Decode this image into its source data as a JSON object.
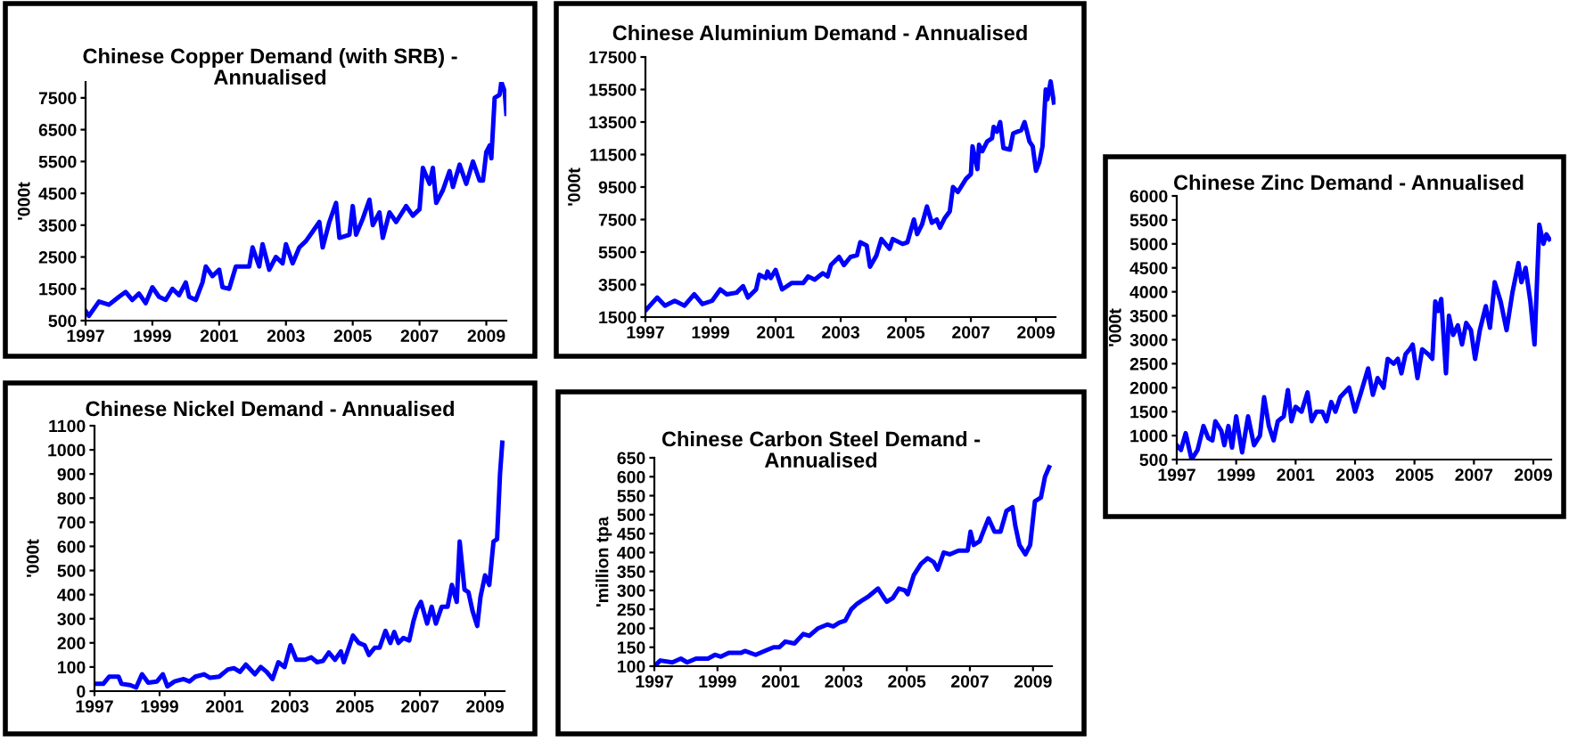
{
  "chart_data": [
    {
      "type": "line",
      "title": "Chinese Copper Demand (with SRB) -\nAnnualised",
      "ylabel": "'000t",
      "color": "#0000ff",
      "xlim": [
        1997,
        2009.6
      ],
      "xticks": [
        1997,
        1999,
        2001,
        2003,
        2005,
        2007,
        2009
      ],
      "ylim": [
        500,
        8000
      ],
      "yticks": [
        500,
        1500,
        2500,
        3500,
        4500,
        5500,
        6500,
        7500
      ],
      "x": [
        1997.0,
        1997.1,
        1997.4,
        1997.7,
        1998.0,
        1998.2,
        1998.4,
        1998.6,
        1998.8,
        1999.0,
        1999.2,
        1999.4,
        1999.6,
        1999.8,
        2000.0,
        2000.1,
        2000.3,
        2000.5,
        2000.6,
        2000.8,
        2001.0,
        2001.1,
        2001.3,
        2001.5,
        2001.7,
        2001.9,
        2002.0,
        2002.2,
        2002.3,
        2002.5,
        2002.7,
        2002.9,
        2003.0,
        2003.2,
        2003.4,
        2003.6,
        2003.8,
        2004.0,
        2004.1,
        2004.3,
        2004.5,
        2004.6,
        2004.9,
        2005.0,
        2005.1,
        2005.3,
        2005.5,
        2005.6,
        2005.8,
        2005.9,
        2006.1,
        2006.3,
        2006.6,
        2006.8,
        2007.0,
        2007.1,
        2007.3,
        2007.4,
        2007.5,
        2007.7,
        2007.9,
        2008.0,
        2008.2,
        2008.4,
        2008.6,
        2008.8,
        2008.9,
        2009.0,
        2009.1,
        2009.15,
        2009.25,
        2009.4,
        2009.45,
        2009.55,
        2009.6
      ],
      "values": [
        800,
        650,
        1100,
        1000,
        1250,
        1400,
        1150,
        1350,
        1050,
        1550,
        1250,
        1150,
        1500,
        1300,
        1700,
        1250,
        1150,
        1700,
        2200,
        1900,
        2100,
        1550,
        1500,
        2200,
        2200,
        2200,
        2800,
        2200,
        2900,
        2100,
        2500,
        2300,
        2900,
        2300,
        2800,
        3000,
        3300,
        3600,
        2800,
        3600,
        4200,
        3100,
        3200,
        4100,
        3200,
        3700,
        4300,
        3500,
        3900,
        3100,
        3900,
        3600,
        4100,
        3800,
        4000,
        5300,
        4800,
        5300,
        4200,
        4600,
        5200,
        4700,
        5400,
        4800,
        5500,
        4900,
        4900,
        5800,
        6000,
        5600,
        7500,
        7600,
        8000,
        7700,
        7000
      ]
    },
    {
      "type": "line",
      "title": "Chinese Aluminium Demand - Annualised",
      "ylabel": "'000t",
      "color": "#0000ff",
      "xlim": [
        1997,
        2009.6
      ],
      "xticks": [
        1997,
        1999,
        2001,
        2003,
        2005,
        2007,
        2009
      ],
      "ylim": [
        1500,
        17500
      ],
      "yticks": [
        1500,
        3500,
        5500,
        7500,
        9500,
        11500,
        13500,
        15500,
        17500
      ],
      "x": [
        1997.0,
        1997.36,
        1997.6,
        1997.9,
        1998.2,
        1998.5,
        1998.75,
        1999.05,
        1999.3,
        1999.5,
        1999.8,
        2000.0,
        2000.15,
        2000.4,
        2000.5,
        2000.7,
        2000.75,
        2000.85,
        2001.0,
        2001.2,
        2001.5,
        2001.85,
        2002.0,
        2002.2,
        2002.45,
        2002.6,
        2002.7,
        2002.95,
        2003.1,
        2003.3,
        2003.5,
        2003.6,
        2003.8,
        2003.9,
        2004.1,
        2004.25,
        2004.5,
        2004.6,
        2004.9,
        2005.05,
        2005.25,
        2005.35,
        2005.5,
        2005.65,
        2005.8,
        2005.95,
        2006.05,
        2006.2,
        2006.35,
        2006.45,
        2006.6,
        2006.85,
        2007.0,
        2007.05,
        2007.2,
        2007.25,
        2007.35,
        2007.5,
        2007.65,
        2007.7,
        2007.8,
        2007.9,
        2008.0,
        2008.2,
        2008.3,
        2008.55,
        2008.65,
        2008.8,
        2008.9,
        2009.0,
        2009.1,
        2009.2,
        2009.3,
        2009.35,
        2009.45,
        2009.55
      ],
      "values": [
        1900,
        2700,
        2200,
        2500,
        2200,
        2900,
        2300,
        2500,
        3200,
        2900,
        3000,
        3400,
        2700,
        3200,
        4100,
        3900,
        4300,
        3900,
        4400,
        3200,
        3600,
        3600,
        4000,
        3800,
        4200,
        4000,
        4700,
        5200,
        4700,
        5200,
        5300,
        6100,
        5900,
        4600,
        5300,
        6300,
        5700,
        6300,
        6000,
        6100,
        7500,
        6600,
        7200,
        8300,
        7300,
        7500,
        7000,
        7600,
        8000,
        9500,
        9200,
        10000,
        10300,
        12000,
        10600,
        12100,
        11700,
        12300,
        12500,
        13200,
        12900,
        13500,
        11900,
        11800,
        12800,
        13000,
        13500,
        12300,
        12000,
        10500,
        11000,
        12000,
        15500,
        14900,
        16000,
        14700
      ]
    },
    {
      "type": "line",
      "title": "Chinese Zinc Demand - Annualised",
      "ylabel": "'000t",
      "color": "#0000ff",
      "xlim": [
        1997,
        2009.6
      ],
      "xticks": [
        1997,
        1999,
        2001,
        2003,
        2005,
        2007,
        2009
      ],
      "ylim": [
        500,
        6000
      ],
      "yticks": [
        500,
        1000,
        1500,
        2000,
        2500,
        3000,
        3500,
        4000,
        4500,
        5000,
        5500,
        6000
      ],
      "x": [
        1997.0,
        1997.14,
        1997.3,
        1997.5,
        1997.7,
        1997.9,
        1998.06,
        1998.2,
        1998.3,
        1998.5,
        1998.6,
        1998.74,
        1998.86,
        1999.0,
        1999.2,
        1999.4,
        1999.6,
        1999.8,
        1999.94,
        2000.1,
        2000.26,
        2000.4,
        2000.6,
        2000.74,
        2000.86,
        2001.0,
        2001.2,
        2001.4,
        2001.54,
        2001.7,
        2001.9,
        2002.04,
        2002.2,
        2002.34,
        2002.5,
        2002.8,
        2003.0,
        2003.2,
        2003.44,
        2003.6,
        2003.76,
        2003.96,
        2004.1,
        2004.3,
        2004.44,
        2004.56,
        2004.7,
        2004.84,
        2004.94,
        2005.1,
        2005.26,
        2005.46,
        2005.6,
        2005.7,
        2005.8,
        2005.9,
        2006.06,
        2006.16,
        2006.3,
        2006.46,
        2006.6,
        2006.74,
        2006.9,
        2007.04,
        2007.2,
        2007.4,
        2007.54,
        2007.7,
        2007.9,
        2008.1,
        2008.3,
        2008.5,
        2008.6,
        2008.74,
        2008.9,
        2009.04,
        2009.2,
        2009.34,
        2009.44,
        2009.54
      ],
      "values": [
        800,
        700,
        1050,
        500,
        700,
        1200,
        950,
        900,
        1300,
        1100,
        800,
        1200,
        750,
        1400,
        650,
        1400,
        800,
        1000,
        1800,
        1200,
        900,
        1300,
        1400,
        1950,
        1300,
        1600,
        1500,
        1900,
        1300,
        1500,
        1500,
        1300,
        1700,
        1500,
        1800,
        2000,
        1500,
        1900,
        2400,
        1850,
        2200,
        2000,
        2600,
        2500,
        2600,
        2300,
        2700,
        2800,
        2900,
        2200,
        2800,
        2700,
        2600,
        3800,
        3600,
        3850,
        2300,
        3500,
        3100,
        3300,
        2900,
        3350,
        3200,
        2600,
        3200,
        3700,
        3250,
        4200,
        3800,
        3200,
        4000,
        4600,
        4200,
        4500,
        3800,
        2900,
        5400,
        5000,
        5200,
        5100
      ]
    },
    {
      "type": "line",
      "title": "Chinese Nickel Demand - Annualised",
      "ylabel": "'000t",
      "color": "#0000ff",
      "xlim": [
        1997,
        2009.6
      ],
      "xticks": [
        1997,
        1999,
        2001,
        2003,
        2005,
        2007,
        2009
      ],
      "ylim": [
        0,
        1100
      ],
      "yticks": [
        0,
        100,
        200,
        300,
        400,
        500,
        600,
        700,
        800,
        900,
        1000,
        1100
      ],
      "x": [
        1997.0,
        1997.27,
        1997.45,
        1997.74,
        1997.83,
        1998.1,
        1998.28,
        1998.46,
        1998.65,
        1998.92,
        1999.1,
        1999.24,
        1999.46,
        1999.74,
        1999.92,
        2000.1,
        2000.37,
        2000.55,
        2000.83,
        2001.1,
        2001.29,
        2001.47,
        2001.65,
        2001.93,
        2002.11,
        2002.29,
        2002.47,
        2002.65,
        2002.84,
        2003.02,
        2003.2,
        2003.47,
        2003.66,
        2003.84,
        2004.02,
        2004.2,
        2004.39,
        2004.57,
        2004.66,
        2004.94,
        2005.12,
        2005.3,
        2005.43,
        2005.61,
        2005.76,
        2005.94,
        2006.09,
        2006.21,
        2006.34,
        2006.49,
        2006.67,
        2006.8,
        2006.91,
        2007.03,
        2007.22,
        2007.36,
        2007.49,
        2007.67,
        2007.85,
        2007.98,
        2008.13,
        2008.22,
        2008.37,
        2008.49,
        2008.62,
        2008.76,
        2008.86,
        2009.0,
        2009.13,
        2009.26,
        2009.37,
        2009.46,
        2009.53
      ],
      "values": [
        30,
        30,
        60,
        60,
        30,
        25,
        15,
        70,
        35,
        40,
        70,
        20,
        40,
        50,
        40,
        60,
        70,
        55,
        60,
        90,
        95,
        80,
        110,
        70,
        100,
        80,
        50,
        120,
        100,
        190,
        130,
        130,
        140,
        120,
        125,
        160,
        130,
        165,
        120,
        230,
        200,
        190,
        150,
        180,
        180,
        250,
        200,
        245,
        200,
        220,
        210,
        290,
        340,
        370,
        280,
        350,
        280,
        350,
        350,
        440,
        370,
        620,
        420,
        410,
        330,
        270,
        390,
        480,
        440,
        620,
        630,
        900,
        1030
      ]
    },
    {
      "type": "line",
      "title": "Chinese Carbon Steel Demand -\nAnnualised",
      "ylabel": "'million tpa",
      "color": "#0000ff",
      "xlim": [
        1997,
        2009.6
      ],
      "xticks": [
        1997,
        1999,
        2001,
        2003,
        2005,
        2007,
        2009
      ],
      "ylim": [
        100,
        650
      ],
      "yticks": [
        100,
        150,
        200,
        250,
        300,
        350,
        400,
        450,
        500,
        550,
        600,
        650
      ],
      "x": [
        1997.0,
        1997.19,
        1997.57,
        1997.84,
        1998.04,
        1998.32,
        1998.7,
        1998.92,
        1999.11,
        1999.36,
        1999.74,
        1999.87,
        2000.21,
        2000.49,
        2000.78,
        2000.96,
        2001.15,
        2001.44,
        2001.72,
        2001.91,
        2002.19,
        2002.48,
        2002.67,
        2002.86,
        2003.05,
        2003.24,
        2003.43,
        2003.61,
        2003.8,
        2004.09,
        2004.28,
        2004.37,
        2004.56,
        2004.75,
        2004.94,
        2005.03,
        2005.22,
        2005.45,
        2005.66,
        2005.85,
        2005.98,
        2006.17,
        2006.36,
        2006.64,
        2006.93,
        2007.02,
        2007.12,
        2007.31,
        2007.4,
        2007.59,
        2007.78,
        2007.97,
        2008.16,
        2008.35,
        2008.44,
        2008.57,
        2008.76,
        2008.91,
        2009.06,
        2009.25,
        2009.38,
        2009.51
      ],
      "values": [
        100,
        115,
        110,
        120,
        110,
        120,
        120,
        130,
        125,
        135,
        135,
        140,
        130,
        140,
        150,
        150,
        165,
        160,
        185,
        180,
        200,
        210,
        205,
        215,
        220,
        250,
        265,
        275,
        285,
        305,
        280,
        270,
        280,
        305,
        300,
        290,
        340,
        370,
        385,
        375,
        355,
        400,
        395,
        405,
        405,
        455,
        420,
        430,
        450,
        490,
        455,
        455,
        510,
        520,
        470,
        420,
        395,
        420,
        535,
        545,
        600,
        625
      ]
    }
  ]
}
